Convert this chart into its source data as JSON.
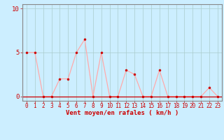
{
  "x": [
    0,
    1,
    2,
    3,
    4,
    5,
    6,
    7,
    8,
    9,
    10,
    11,
    12,
    13,
    14,
    15,
    16,
    17,
    18,
    19,
    20,
    21,
    22,
    23
  ],
  "y": [
    5,
    5,
    0,
    0,
    2,
    2,
    5,
    6.5,
    0,
    5,
    0,
    0,
    3,
    2.5,
    0,
    0,
    3,
    0,
    0,
    0,
    0,
    0,
    1,
    0
  ],
  "line_color": "#ffaaaa",
  "marker_color": "#cc0000",
  "bg_color": "#cceeff",
  "grid_color": "#aacccc",
  "axis_color": "#888888",
  "xlabel": "Vent moyen/en rafales ( km/h )",
  "xlabel_color": "#cc0000",
  "tick_color": "#cc0000",
  "yticks": [
    0,
    5,
    10
  ],
  "xlim": [
    -0.5,
    23.5
  ],
  "ylim": [
    -0.5,
    10.5
  ],
  "font_size": 6.5
}
